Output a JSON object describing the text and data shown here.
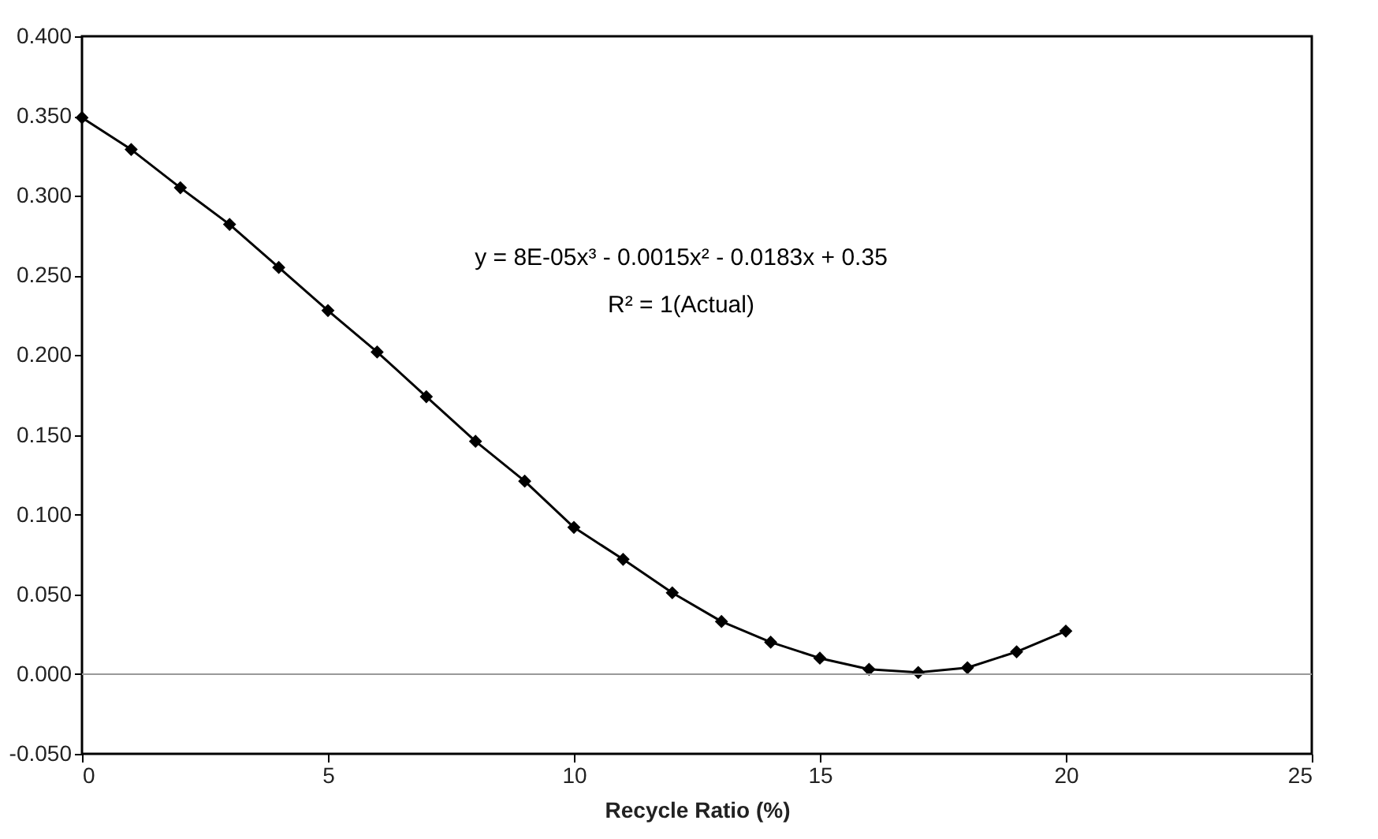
{
  "chart_data": {
    "type": "line",
    "xlabel": "Recycle Ratio (%)",
    "x": [
      0,
      1,
      2,
      3,
      4,
      5,
      6,
      7,
      8,
      9,
      10,
      11,
      12,
      13,
      14,
      15,
      16,
      17,
      18,
      19,
      20
    ],
    "series": [
      {
        "color": "#000000",
        "values": [
          0.349,
          0.329,
          0.305,
          0.282,
          0.255,
          0.228,
          0.202,
          0.174,
          0.146,
          0.121,
          0.092,
          0.072,
          0.051,
          0.033,
          0.02,
          0.01,
          0.003,
          0.001,
          0.004,
          0.014,
          0.027
        ]
      }
    ],
    "xlim": [
      0,
      25
    ],
    "xticks": [
      0,
      5,
      10,
      15,
      20,
      25
    ],
    "ylim": [
      -0.05,
      0.4
    ],
    "yticks": [
      {
        "value": -0.05,
        "label": "-0.050"
      },
      {
        "value": 0,
        "label": "0.000"
      },
      {
        "value": 0.05,
        "label": "0.050"
      },
      {
        "value": 0.1,
        "label": "0.100"
      },
      {
        "value": 0.15,
        "label": "0.150"
      },
      {
        "value": 0.2,
        "label": "0.200"
      },
      {
        "value": 0.25,
        "label": "0.250"
      },
      {
        "value": 0.3,
        "label": "0.300"
      },
      {
        "value": 0.35,
        "label": "0.350"
      },
      {
        "value": 0.4,
        "label": "0.400"
      }
    ],
    "ref_lines": [
      {
        "axis": "y",
        "value": 0,
        "color": "#999999"
      }
    ],
    "annotations": [
      "y = 8E-05x³ - 0.0015x² - 0.0183x + 0.35",
      "R² = 1(Actual)"
    ],
    "marker": "diamond",
    "line_style": "solid",
    "grid": false
  }
}
